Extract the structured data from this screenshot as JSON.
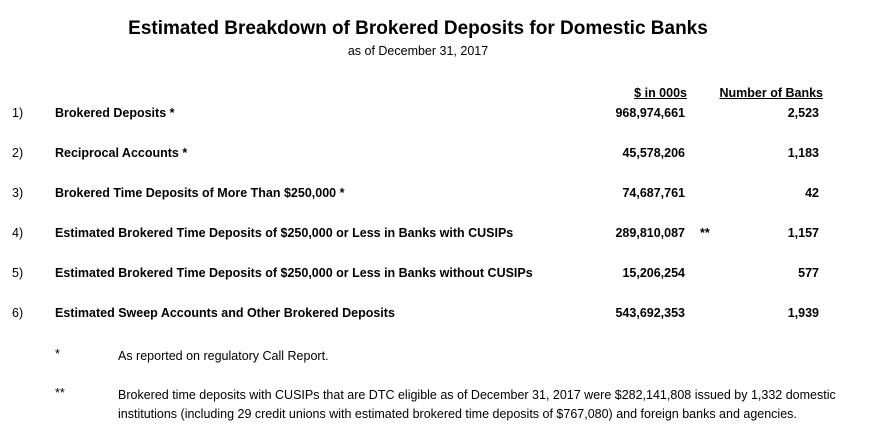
{
  "title": "Estimated Breakdown of Brokered Deposits for Domestic Banks",
  "subtitle": "as of December 31, 2017",
  "columns": {
    "amount": "$ in 000s",
    "banks": "Number of Banks"
  },
  "rows": [
    {
      "num": "1)",
      "label": "Brokered Deposits *",
      "amount": "968,974,661",
      "mark": "",
      "banks": "2,523"
    },
    {
      "num": "2)",
      "label": "Reciprocal Accounts *",
      "amount": "45,578,206",
      "mark": "",
      "banks": "1,183"
    },
    {
      "num": "3)",
      "label": "Brokered Time Deposits of More Than $250,000 *",
      "amount": "74,687,761",
      "mark": "",
      "banks": "42"
    },
    {
      "num": "4)",
      "label": "Estimated Brokered Time Deposits of $250,000 or Less in Banks with CUSIPs",
      "amount": "289,810,087",
      "mark": "**",
      "banks": "1,157"
    },
    {
      "num": "5)",
      "label": "Estimated Brokered Time Deposits of $250,000 or Less in Banks without CUSIPs",
      "amount": "15,206,254",
      "mark": "",
      "banks": "577"
    },
    {
      "num": "6)",
      "label": "Estimated Sweep Accounts and Other Brokered Deposits",
      "amount": "543,692,353",
      "mark": "",
      "banks": "1,939"
    }
  ],
  "notes": [
    {
      "symbol": "*",
      "text": "As reported on regulatory Call Report."
    },
    {
      "symbol": "**",
      "text": "Brokered time deposits with CUSIPs that are DTC eligible as of December 31, 2017 were $282,141,808 issued by 1,332 domestic institutions (including 29 credit unions with estimated brokered time deposits of $767,080) and foreign banks and agencies."
    }
  ]
}
